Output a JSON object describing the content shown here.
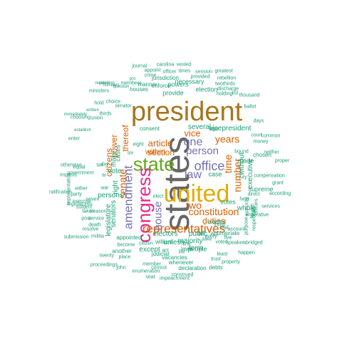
{
  "palette": {
    "teal": "#1b9e77",
    "orange": "#d95f02",
    "purple": "#7570b3",
    "pink": "#e7298a",
    "green": "#66a61e",
    "gold": "#e6ab02",
    "brown": "#a6761d",
    "gray": "#666666"
  },
  "words": [
    {
      "text": "states",
      "color": "gray",
      "rotate": -90
    },
    {
      "text": "president",
      "color": "brown",
      "rotate": 0
    },
    {
      "text": "united",
      "color": "gold",
      "rotate": 0
    },
    {
      "text": "state",
      "color": "green",
      "rotate": 0
    },
    {
      "text": "congress",
      "color": "pink",
      "rotate": -90
    },
    {
      "text": "representatives",
      "color": "orange",
      "rotate": 0
    },
    {
      "text": "amendment",
      "color": "purple",
      "rotate": -90
    },
    {
      "text": "office",
      "color": "purple",
      "rotate": 0
    },
    {
      "text": "house",
      "color": "purple",
      "rotate": -90
    },
    {
      "text": "law",
      "color": "purple",
      "rotate": 0
    },
    {
      "text": "constitution",
      "color": "orange",
      "rotate": 0
    },
    {
      "text": "senate",
      "color": "orange",
      "rotate": -90
    },
    {
      "text": "person",
      "color": "purple",
      "rotate": 0
    },
    {
      "text": "article",
      "color": "orange",
      "rotate": 0
    },
    {
      "text": "years",
      "color": "orange",
      "rotate": 0
    },
    {
      "text": "one",
      "color": "purple",
      "rotate": 0
    },
    {
      "text": "vice",
      "color": "orange",
      "rotate": 0
    },
    {
      "text": "time",
      "color": "orange",
      "rotate": -90
    },
    {
      "text": "number",
      "color": "orange",
      "rotate": -90
    },
    {
      "text": "two",
      "color": "orange",
      "rotate": 0
    },
    {
      "text": "thereof",
      "color": "orange",
      "rotate": -90
    },
    {
      "text": "power",
      "color": "orange",
      "rotate": -90
    },
    {
      "text": "citizens",
      "color": "orange",
      "rotate": -90
    },
    {
      "text": "section",
      "color": "orange",
      "rotate": 0
    },
    {
      "text": "duties",
      "color": "orange",
      "rotate": 0
    },
    {
      "text": "within",
      "color": "orange",
      "rotate": 0
    },
    {
      "text": "vicepresident",
      "color": "teal",
      "rotate": 0
    },
    {
      "text": "several",
      "color": "teal",
      "rotate": 0
    },
    {
      "text": "persons",
      "color": "teal",
      "rotate": 0
    },
    {
      "text": "majority",
      "color": "teal",
      "rotate": 0
    },
    {
      "text": "electors",
      "color": "teal",
      "rotate": 0
    },
    {
      "text": "public",
      "color": "teal",
      "rotate": 0
    },
    {
      "text": "votes",
      "color": "teal",
      "rotate": 0
    },
    {
      "text": "except",
      "color": "teal",
      "rotate": 0
    },
    {
      "text": "unless",
      "color": "teal",
      "rotate": 0
    },
    {
      "text": "term",
      "color": "teal",
      "rotate": 0
    },
    {
      "text": "vote",
      "color": "teal",
      "rotate": 0
    },
    {
      "text": "right",
      "color": "teal",
      "rotate": -90
    },
    {
      "text": "make",
      "color": "teal",
      "rotate": -90
    },
    {
      "text": "case",
      "color": "teal",
      "rotate": 0
    },
    {
      "text": "cases",
      "color": "teal",
      "rotate": -90
    },
    {
      "text": "made",
      "color": "teal",
      "rotate": 0
    },
    {
      "text": "executive",
      "color": "teal",
      "rotate": -90
    },
    {
      "text": "without",
      "color": "teal",
      "rotate": -90
    },
    {
      "text": "chosen",
      "color": "teal",
      "rotate": 0
    },
    {
      "text": "supreme",
      "color": "teal",
      "rotate": 0
    },
    {
      "text": "legislature",
      "color": "teal",
      "rotate": -90
    },
    {
      "text": "senators",
      "color": "teal",
      "rotate": -90
    },
    {
      "text": "people",
      "color": "teal",
      "rotate": 0
    },
    {
      "text": "manner",
      "color": "teal",
      "rotate": 0
    },
    {
      "text": "powers",
      "color": "teal",
      "rotate": 0
    },
    {
      "text": "provide",
      "color": "teal",
      "rotate": 0
    },
    {
      "text": "houses",
      "color": "teal",
      "rotate": 0
    },
    {
      "text": "election",
      "color": "teal",
      "rotate": 0
    },
    {
      "text": "necessary",
      "color": "teal",
      "rotate": 0
    },
    {
      "text": "members",
      "color": "teal",
      "rotate": 0
    },
    {
      "text": "enforce",
      "color": "teal",
      "rotate": 0
    },
    {
      "text": "jurisdiction",
      "color": "teal",
      "rotate": 0
    },
    {
      "text": "consent",
      "color": "teal",
      "rotate": 0
    },
    {
      "text": "bill",
      "color": "teal",
      "rotate": 0
    },
    {
      "text": "appropriate",
      "color": "teal",
      "rotate": 0
    },
    {
      "text": "appointed",
      "color": "teal",
      "rotate": 0
    },
    {
      "text": "another",
      "color": "teal",
      "rotate": 0
    },
    {
      "text": "judicial",
      "color": "teal",
      "rotate": 0
    },
    {
      "text": "vacancies",
      "color": "teal",
      "rotate": 0
    },
    {
      "text": "elected",
      "color": "teal",
      "rotate": 0
    },
    {
      "text": "whole",
      "color": "teal",
      "rotate": 0
    },
    {
      "text": "foreign",
      "color": "teal",
      "rotate": -90
    },
    {
      "text": "authority",
      "color": "teal",
      "rotate": -90
    },
    {
      "text": "officers",
      "color": "teal",
      "rotate": -90
    },
    {
      "text": "whenever",
      "color": "teal",
      "rotate": 0
    },
    {
      "text": "declaration",
      "color": "teal",
      "rotate": 0
    },
    {
      "text": "debts",
      "color": "teal",
      "rotate": 0
    },
    {
      "text": "member",
      "color": "teal",
      "rotate": 0
    },
    {
      "text": "consist",
      "color": "teal",
      "rotate": 0
    },
    {
      "text": "construed",
      "color": "teal",
      "rotate": 0
    },
    {
      "text": "enumeration",
      "color": "teal",
      "rotate": 0
    },
    {
      "text": "seat",
      "color": "teal",
      "rotate": 0
    },
    {
      "text": "impeachment",
      "color": "teal",
      "rotate": 0
    },
    {
      "text": "become",
      "color": "teal",
      "rotate": 0
    },
    {
      "text": "citizen",
      "color": "teal",
      "rotate": 0
    },
    {
      "text": "place",
      "color": "teal",
      "rotate": 0
    },
    {
      "text": "twenty",
      "color": "teal",
      "rotate": 0
    },
    {
      "text": "proceedings",
      "color": "teal",
      "rotate": 0
    },
    {
      "text": "john",
      "color": "teal",
      "rotate": 0
    },
    {
      "text": "treason",
      "color": "teal",
      "rotate": 0
    },
    {
      "text": "service",
      "color": "teal",
      "rotate": 0
    },
    {
      "text": "death",
      "color": "teal",
      "rotate": 0
    },
    {
      "text": "taken",
      "color": "teal",
      "rotate": 0
    },
    {
      "text": "post",
      "color": "teal",
      "rotate": 0
    },
    {
      "text": "submission",
      "color": "teal",
      "rotate": 0
    },
    {
      "text": "militia",
      "color": "teal",
      "rotate": 0
    },
    {
      "text": "resolve",
      "color": "teal",
      "rotate": 0
    },
    {
      "text": "subject",
      "color": "teal",
      "rotate": 0
    },
    {
      "text": "seven",
      "color": "teal",
      "rotate": 0
    },
    {
      "text": "party",
      "color": "teal",
      "rotate": 0
    },
    {
      "text": "legislatures",
      "color": "teal",
      "rotate": 0
    },
    {
      "text": "exercise",
      "color": "teal",
      "rotate": 0
    },
    {
      "text": "either",
      "color": "teal",
      "rotate": 0
    },
    {
      "text": "ratification",
      "color": "teal",
      "rotate": 0
    },
    {
      "text": "imposts",
      "color": "teal",
      "rotate": 0
    },
    {
      "text": "representation",
      "color": "teal",
      "rotate": -90
    },
    {
      "text": "government",
      "color": "teal",
      "rotate": 0
    },
    {
      "text": "equal",
      "color": "teal",
      "rotate": 0
    },
    {
      "text": "tax",
      "color": "teal",
      "rotate": 0
    },
    {
      "text": "day",
      "color": "teal",
      "rotate": 0
    },
    {
      "text": "war",
      "color": "teal",
      "rotate": 0
    },
    {
      "text": "fill",
      "color": "teal",
      "rotate": 0
    },
    {
      "text": "eight",
      "color": "teal",
      "rotate": 0
    },
    {
      "text": "six",
      "color": "teal",
      "rotate": 0
    },
    {
      "text": "thirds",
      "color": "teal",
      "rotate": 0
    },
    {
      "text": "senator",
      "color": "teal",
      "rotate": 0
    },
    {
      "text": "hold",
      "color": "teal",
      "rotate": 0
    },
    {
      "text": "choice",
      "color": "teal",
      "rotate": 0
    },
    {
      "text": "ministers",
      "color": "teal",
      "rotate": 0
    },
    {
      "text": "choosing",
      "color": "teal",
      "rotate": 0
    },
    {
      "text": "union",
      "color": "teal",
      "rotate": 0
    },
    {
      "text": "enter",
      "color": "teal",
      "rotate": 0
    },
    {
      "text": "otherwise",
      "color": "teal",
      "rotate": 0
    },
    {
      "text": "journal",
      "color": "teal",
      "rotate": 0
    },
    {
      "text": "carolina",
      "color": "teal",
      "rotate": 0
    },
    {
      "text": "vested",
      "color": "teal",
      "rotate": 0
    },
    {
      "text": "appoint",
      "color": "teal",
      "rotate": 0
    },
    {
      "text": "officer",
      "color": "teal",
      "rotate": 0
    },
    {
      "text": "times",
      "color": "teal",
      "rotate": 0
    },
    {
      "text": "session",
      "color": "teal",
      "rotate": 0
    },
    {
      "text": "greatest",
      "color": "teal",
      "rotate": 0
    },
    {
      "text": "crime",
      "color": "teal",
      "rotate": 0
    },
    {
      "text": "provided",
      "color": "teal",
      "rotate": 0
    },
    {
      "text": "rebellion",
      "color": "teal",
      "rotate": 0
    },
    {
      "text": "twothirds",
      "color": "teal",
      "rotate": 0
    },
    {
      "text": "discharge",
      "color": "teal",
      "rotate": 0
    },
    {
      "text": "holding",
      "color": "teal",
      "rotate": 0
    },
    {
      "text": "list",
      "color": "teal",
      "rotate": 0
    },
    {
      "text": "thousand",
      "color": "teal",
      "rotate": 0
    },
    {
      "text": "court",
      "color": "teal",
      "rotate": 0
    },
    {
      "text": "days",
      "color": "teal",
      "rotate": 0
    },
    {
      "text": "common",
      "color": "teal",
      "rotate": 0
    },
    {
      "text": "money",
      "color": "teal",
      "rotate": 0
    },
    {
      "text": "neither",
      "color": "teal",
      "rotate": 0
    },
    {
      "text": "compensation",
      "color": "teal",
      "rotate": 0
    },
    {
      "text": "according",
      "color": "teal",
      "rotate": 0
    },
    {
      "text": "proper",
      "color": "teal",
      "rotate": 0
    },
    {
      "text": "grant",
      "color": "teal",
      "rotate": 0
    },
    {
      "text": "respective",
      "color": "teal",
      "rotate": -90
    },
    {
      "text": "purpose",
      "color": "teal",
      "rotate": -90
    },
    {
      "text": "services",
      "color": "teal",
      "rotate": 0
    },
    {
      "text": "imperative",
      "color": "teal",
      "rotate": 0
    },
    {
      "text": "direct",
      "color": "teal",
      "rotate": 0
    },
    {
      "text": "jury",
      "color": "teal",
      "rotate": 0
    },
    {
      "text": "account",
      "color": "teal",
      "rotate": 0
    },
    {
      "text": "held",
      "color": "teal",
      "rotate": 0
    },
    {
      "text": "five",
      "color": "teal",
      "rotate": 0
    },
    {
      "text": "first",
      "color": "teal",
      "rotate": 0
    },
    {
      "text": "take",
      "color": "teal",
      "rotate": 0
    },
    {
      "text": "speaker",
      "color": "teal",
      "rotate": 0
    },
    {
      "text": "voted",
      "color": "teal",
      "rotate": 0
    },
    {
      "text": "trial",
      "color": "teal",
      "rotate": 0
    },
    {
      "text": "three",
      "color": "teal",
      "rotate": 0
    },
    {
      "text": "property",
      "color": "teal",
      "rotate": 0
    },
    {
      "text": "happen",
      "color": "teal",
      "rotate": 0
    },
    {
      "text": "abridged",
      "color": "teal",
      "rotate": 0
    },
    {
      "text": "least",
      "color": "teal",
      "rotate": 0
    },
    {
      "text": "trust",
      "color": "teal",
      "rotate": 0
    },
    {
      "text": "act",
      "color": "teal",
      "rotate": 0
    },
    {
      "text": "life",
      "color": "teal",
      "rotate": 0
    },
    {
      "text": "william",
      "color": "teal",
      "rotate": 0
    },
    {
      "text": "every",
      "color": "teal",
      "rotate": 0
    },
    {
      "text": "age",
      "color": "teal",
      "rotate": 0
    },
    {
      "text": "ballot",
      "color": "teal",
      "rotate": 0
    },
    {
      "text": "bound",
      "color": "teal",
      "rotate": 0
    },
    {
      "text": "elect",
      "color": "teal",
      "rotate": 0
    },
    {
      "text": "laws",
      "color": "teal",
      "rotate": 0
    },
    {
      "text": "immediately",
      "color": "teal",
      "rotate": 0
    },
    {
      "text": "establish",
      "color": "teal",
      "rotate": 0
    },
    {
      "text": "written",
      "color": "teal",
      "rotate": 0
    },
    {
      "text": "receive",
      "color": "teal",
      "rotate": 0
    },
    {
      "text": "numbers",
      "color": "teal",
      "rotate": 0
    },
    {
      "text": "pro",
      "color": "teal",
      "rotate": 0
    },
    {
      "text": "pending",
      "color": "teal",
      "rotate": 0
    },
    {
      "text": "question",
      "color": "teal",
      "rotate": 0
    }
  ]
}
